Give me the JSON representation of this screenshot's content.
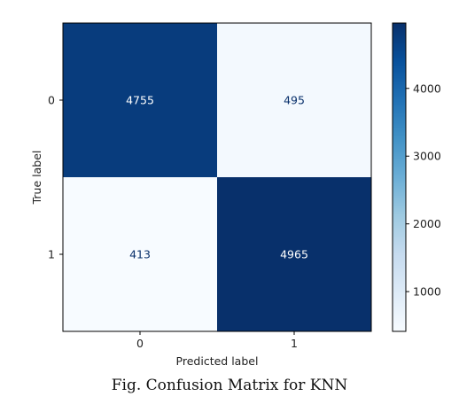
{
  "chart_data": {
    "type": "heatmap",
    "x_categories": [
      "0",
      "1"
    ],
    "y_categories": [
      "0",
      "1"
    ],
    "values": [
      [
        4755,
        495
      ],
      [
        413,
        4965
      ]
    ],
    "xlabel": "Predicted label",
    "ylabel": "True label",
    "colormap": "Blues",
    "colorbar": {
      "range": [
        413,
        4965
      ],
      "ticks": [
        1000,
        2000,
        3000,
        4000
      ],
      "tick_labels": [
        "1000",
        "2000",
        "3000",
        "4000"
      ]
    },
    "colors": {
      "low": "#f7fbff",
      "high": "#08306b"
    }
  },
  "caption": "Fig. Confusion Matrix for KNN"
}
